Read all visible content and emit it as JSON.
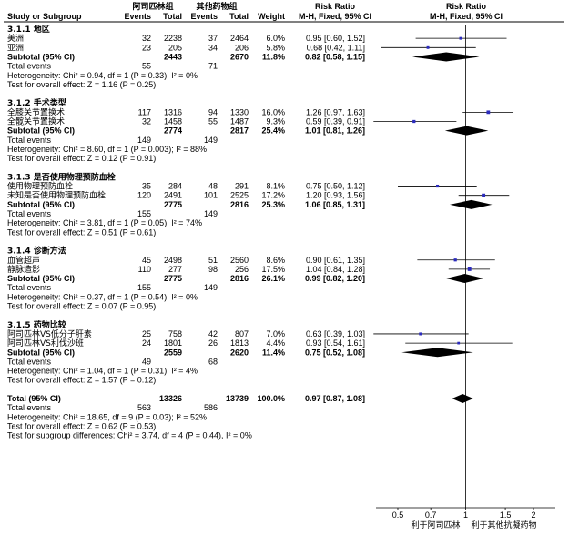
{
  "headers": {
    "group1": "阿司匹林组",
    "group2": "其他药物组",
    "study": "Study or Subgroup",
    "events1": "Events",
    "total1": "Total",
    "events2": "Events",
    "total2": "Total",
    "weight": "Weight",
    "rr_title": "Risk Ratio",
    "rr_method": "M-H, Fixed, 95% CI",
    "plot_title": "Risk Ratio",
    "plot_method": "M-H, Fixed, 95% CI"
  },
  "chart_data": {
    "type": "forest",
    "x_scale": "log",
    "xlim": [
      0.4,
      2.5
    ],
    "ticks": [
      "0.5",
      "0.7",
      "1",
      "1.5",
      "2"
    ],
    "tick_values": [
      0.5,
      0.7,
      1,
      1.5,
      2
    ],
    "favours_left": "利于阿司匹林",
    "favours_right": "利于其他抗凝药物",
    "subgroups": [
      {
        "title": "3.1.1 地区",
        "studies": [
          {
            "name": "美洲",
            "e1": "32",
            "n1": "2238",
            "e2": "37",
            "n2": "2464",
            "weight": "6.0%",
            "ci": "0.95 [0.60, 1.52]",
            "rr": 0.95,
            "lo": 0.6,
            "hi": 1.52,
            "w": 6.0
          },
          {
            "name": "亚洲",
            "e1": "23",
            "n1": "205",
            "e2": "34",
            "n2": "206",
            "weight": "5.8%",
            "ci": "0.68 [0.42, 1.11]",
            "rr": 0.68,
            "lo": 0.42,
            "hi": 1.11,
            "w": 5.8
          }
        ],
        "subtotal": {
          "label": "Subtotal (95% CI)",
          "n1": "2443",
          "n2": "2670",
          "weight": "11.8%",
          "ci": "0.82 [0.58, 1.15]",
          "rr": 0.82,
          "lo": 0.58,
          "hi": 1.15
        },
        "total_events": {
          "label": "Total events",
          "e1": "55",
          "e2": "71"
        },
        "heterogeneity": "Heterogeneity: Chi² = 0.94, df = 1 (P = 0.33); I² = 0%",
        "overall": "Test for overall effect: Z = 1.16 (P = 0.25)"
      },
      {
        "title": "3.1.2 手术类型",
        "studies": [
          {
            "name": "全膝关节置换术",
            "e1": "117",
            "n1": "1316",
            "e2": "94",
            "n2": "1330",
            "weight": "16.0%",
            "ci": "1.26 [0.97, 1.63]",
            "rr": 1.26,
            "lo": 0.97,
            "hi": 1.63,
            "w": 16.0
          },
          {
            "name": "全髋关节置换术",
            "e1": "32",
            "n1": "1458",
            "e2": "55",
            "n2": "1487",
            "weight": "9.3%",
            "ci": "0.59 [0.39, 0.91]",
            "rr": 0.59,
            "lo": 0.39,
            "hi": 0.91,
            "w": 9.3
          }
        ],
        "subtotal": {
          "label": "Subtotal (95% CI)",
          "n1": "2774",
          "n2": "2817",
          "weight": "25.4%",
          "ci": "1.01 [0.81, 1.26]",
          "rr": 1.01,
          "lo": 0.81,
          "hi": 1.26
        },
        "total_events": {
          "label": "Total events",
          "e1": "149",
          "e2": "149"
        },
        "heterogeneity": "Heterogeneity: Chi² = 8.60, df = 1 (P = 0.003); I² = 88%",
        "overall": "Test for overall effect: Z = 0.12 (P = 0.91)"
      },
      {
        "title": "3.1.3 是否使用物理预防血栓",
        "studies": [
          {
            "name": "使用物理预防血栓",
            "e1": "35",
            "n1": "284",
            "e2": "48",
            "n2": "291",
            "weight": "8.1%",
            "ci": "0.75 [0.50, 1.12]",
            "rr": 0.75,
            "lo": 0.5,
            "hi": 1.12,
            "w": 8.1
          },
          {
            "name": "未知是否使用物理预防血栓",
            "e1": "120",
            "n1": "2491",
            "e2": "101",
            "n2": "2525",
            "weight": "17.2%",
            "ci": "1.20 [0.93, 1.56]",
            "rr": 1.2,
            "lo": 0.93,
            "hi": 1.56,
            "w": 17.2
          }
        ],
        "subtotal": {
          "label": "Subtotal (95% CI)",
          "n1": "2775",
          "n2": "2816",
          "weight": "25.3%",
          "ci": "1.06 [0.85, 1.31]",
          "rr": 1.06,
          "lo": 0.85,
          "hi": 1.31
        },
        "total_events": {
          "label": "Total events",
          "e1": "155",
          "e2": "149"
        },
        "heterogeneity": "Heterogeneity: Chi² = 3.81, df = 1 (P = 0.05); I² = 74%",
        "overall": "Test for overall effect: Z = 0.51 (P = 0.61)"
      },
      {
        "title": "3.1.4 诊断方法",
        "studies": [
          {
            "name": "血管超声",
            "e1": "45",
            "n1": "2498",
            "e2": "51",
            "n2": "2560",
            "weight": "8.6%",
            "ci": "0.90 [0.61, 1.35]",
            "rr": 0.9,
            "lo": 0.61,
            "hi": 1.35,
            "w": 8.6
          },
          {
            "name": "静脉造影",
            "e1": "110",
            "n1": "277",
            "e2": "98",
            "n2": "256",
            "weight": "17.5%",
            "ci": "1.04 [0.84, 1.28]",
            "rr": 1.04,
            "lo": 0.84,
            "hi": 1.28,
            "w": 17.5
          }
        ],
        "subtotal": {
          "label": "Subtotal (95% CI)",
          "n1": "2775",
          "n2": "2816",
          "weight": "26.1%",
          "ci": "0.99 [0.82, 1.20]",
          "rr": 0.99,
          "lo": 0.82,
          "hi": 1.2
        },
        "total_events": {
          "label": "Total events",
          "e1": "155",
          "e2": "149"
        },
        "heterogeneity": "Heterogeneity: Chi² = 0.37, df = 1 (P = 0.54); I² = 0%",
        "overall": "Test for overall effect: Z = 0.07 (P = 0.95)"
      },
      {
        "title": "3.1.5 药物比较",
        "studies": [
          {
            "name": "阿司匹林VS低分子肝素",
            "e1": "25",
            "n1": "758",
            "e2": "42",
            "n2": "807",
            "weight": "7.0%",
            "ci": "0.63 [0.39, 1.03]",
            "rr": 0.63,
            "lo": 0.39,
            "hi": 1.03,
            "w": 7.0
          },
          {
            "name": "阿司匹林VS利伐沙班",
            "e1": "24",
            "n1": "1801",
            "e2": "26",
            "n2": "1813",
            "weight": "4.4%",
            "ci": "0.93 [0.54, 1.61]",
            "rr": 0.93,
            "lo": 0.54,
            "hi": 1.61,
            "w": 4.4
          }
        ],
        "subtotal": {
          "label": "Subtotal (95% CI)",
          "n1": "2559",
          "n2": "2620",
          "weight": "11.4%",
          "ci": "0.75 [0.52, 1.08]",
          "rr": 0.75,
          "lo": 0.52,
          "hi": 1.08
        },
        "total_events": {
          "label": "Total events",
          "e1": "49",
          "e2": "68"
        },
        "heterogeneity": "Heterogeneity: Chi² = 1.04, df = 1 (P = 0.31); I² = 4%",
        "overall": "Test for overall effect: Z = 1.57 (P = 0.12)"
      }
    ],
    "total": {
      "label": "Total (95% CI)",
      "n1": "13326",
      "n2": "13739",
      "weight": "100.0%",
      "ci": "0.97 [0.87, 1.08]",
      "rr": 0.97,
      "lo": 0.87,
      "hi": 1.08
    },
    "total_events": {
      "label": "Total events",
      "e1": "563",
      "e2": "586"
    },
    "heterogeneity": "Heterogeneity: Chi² = 18.65, df = 9 (P = 0.03); I² = 52%",
    "overall": "Test for overall effect: Z = 0.62 (P = 0.53)",
    "subgroup_diff": "Test for subgroup differences: Chi² = 3.74, df = 4 (P = 0.44), I² = 0%"
  }
}
